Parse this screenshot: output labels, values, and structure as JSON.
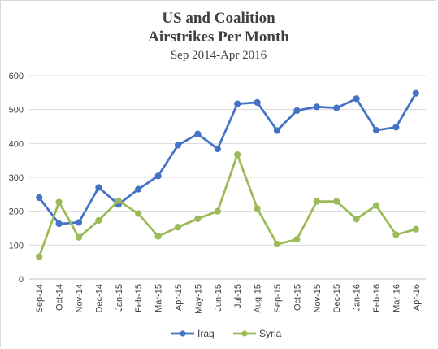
{
  "chart_data": {
    "type": "line",
    "title": "US and Coalition",
    "title_line2": "Airstrikes Per Month",
    "subtitle": "Sep 2014-Apr 2016",
    "xlabel": "",
    "ylabel": "",
    "categories": [
      "Sep-14",
      "Oct-14",
      "Nov-14",
      "Dec-14",
      "Jan-15",
      "Feb-15",
      "Mar-15",
      "Apr-15",
      "May-15",
      "Jun-15",
      "Jul-15",
      "Aug-15",
      "Sep-15",
      "Oct-15",
      "Nov-15",
      "Dec-15",
      "Jan-16",
      "Feb-16",
      "Mar-16",
      "Apr-16"
    ],
    "ylim": [
      0,
      600
    ],
    "yticks": [
      "0",
      "100",
      "200",
      "300",
      "400",
      "500",
      "600"
    ],
    "grid": true,
    "legend_position": "bottom",
    "series": [
      {
        "name": "Iraq",
        "color": "#4472c4",
        "values": [
          240,
          163,
          167,
          270,
          220,
          265,
          304,
          395,
          428,
          384,
          517,
          521,
          438,
          497,
          508,
          505,
          532,
          439,
          448,
          548
        ]
      },
      {
        "name": "Syria",
        "color": "#9bbb59",
        "values": [
          66,
          227,
          123,
          173,
          231,
          193,
          126,
          153,
          178,
          200,
          367,
          208,
          103,
          117,
          229,
          229,
          177,
          217,
          131,
          147
        ]
      }
    ]
  }
}
